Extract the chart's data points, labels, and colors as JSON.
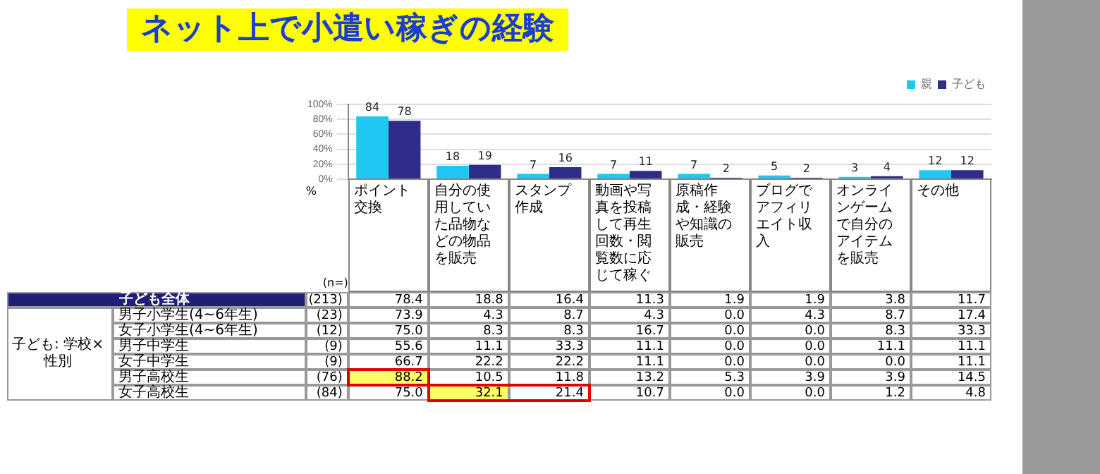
{
  "chart_data": [
    {
      "type": "bar",
      "title": "ネット上で小遣い稼ぎの経験",
      "ylabel": "%",
      "categories": [
        "ポイント交換",
        "自分の使用していた品物などの物品を販売",
        "スタンプ作成",
        "動画や写真を投稿して再生回数・閲覧数に応じて稼ぐ",
        "原稿作成・経験や知識の販売",
        "ブログでアフィリエイト収入",
        "オンラインゲームで自分のアイテムを販売",
        "その他"
      ],
      "series": [
        {
          "name": "親",
          "color": "#1ec8f0",
          "values": [
            84,
            18,
            7,
            7,
            7,
            5,
            3,
            12
          ]
        },
        {
          "name": "子ども",
          "color": "#2e2e8a",
          "values": [
            78,
            19,
            16,
            11,
            2,
            2,
            4,
            12
          ]
        }
      ],
      "ylim": [
        0,
        100
      ],
      "yticks": [
        {
          "value": 0,
          "label": "0%"
        },
        {
          "value": 20,
          "label": "20%"
        },
        {
          "value": 40,
          "label": "40%"
        },
        {
          "value": 60,
          "label": "60%"
        },
        {
          "value": 80,
          "label": "80%"
        },
        {
          "value": 100,
          "label": "100%"
        }
      ],
      "grid": "y",
      "legend": "top right",
      "data_labels": true
    },
    {
      "type": "heatmap",
      "categories": [
        "ポイント交換",
        "自分の使用していた品物などの物品を販売",
        "スタンプ作成",
        "動画や写真を投稿して再生回数・閲覧数に応じて稼ぐ",
        "原稿作成・経験や知識の販売",
        "ブログでアフィリエイト収入",
        "オンラインゲームで自分のアイテムを販売",
        "その他"
      ],
      "y_categories": [
        "子ども全体",
        "男子小学生(4~6年生)",
        "女子小学生(4~6年生)",
        "男子中学生",
        "女子中学生",
        "男子高校生",
        "女子高校生"
      ],
      "y2_categories": [
        "(213)",
        "(23)",
        "(12)",
        "(9)",
        "(9)",
        "(76)",
        "(84)"
      ],
      "cells": [
        [
          78.4,
          18.8,
          16.4,
          11.3,
          1.9,
          1.9,
          3.8,
          11.7
        ],
        [
          73.9,
          4.3,
          8.7,
          4.3,
          0,
          4.3,
          8.7,
          17.4
        ],
        [
          75,
          8.3,
          8.3,
          16.7,
          0,
          0,
          8.3,
          33.3
        ],
        [
          55.6,
          11.1,
          33.3,
          11.1,
          0,
          0,
          11.1,
          11.1
        ],
        [
          66.7,
          22.2,
          22.2,
          11.1,
          0,
          0,
          0,
          11.1
        ],
        [
          88.2,
          10.5,
          11.8,
          13.2,
          5.3,
          3.9,
          3.9,
          14.5
        ],
        [
          75,
          32.1,
          21.4,
          10.7,
          0,
          0,
          1.2,
          4.8
        ]
      ],
      "cell_labels": [
        [
          "78.4",
          "18.8",
          "16.4",
          "11.3",
          "1.9",
          "1.9",
          "3.8",
          "11.7"
        ],
        [
          "73.9",
          "4.3",
          "8.7",
          "4.3",
          "0.0",
          "4.3",
          "8.7",
          "17.4"
        ],
        [
          "75.0",
          "8.3",
          "8.3",
          "16.7",
          "0.0",
          "0.0",
          "8.3",
          "33.3"
        ],
        [
          "55.6",
          "11.1",
          "33.3",
          "11.1",
          "0.0",
          "0.0",
          "11.1",
          "11.1"
        ],
        [
          "66.7",
          "22.2",
          "22.2",
          "11.1",
          "0.0",
          "0.0",
          "0.0",
          "11.1"
        ],
        [
          "88.2",
          "10.5",
          "11.8",
          "13.2",
          "5.3",
          "3.9",
          "3.9",
          "14.5"
        ],
        [
          "75.0",
          "32.1",
          "21.4",
          "10.7",
          "0.0",
          "0.0",
          "1.2",
          "4.8"
        ]
      ],
      "tick_labels": "y",
      "annotations": [
        "(n=)",
        "子ども: 学校×性別"
      ]
    }
  ]
}
